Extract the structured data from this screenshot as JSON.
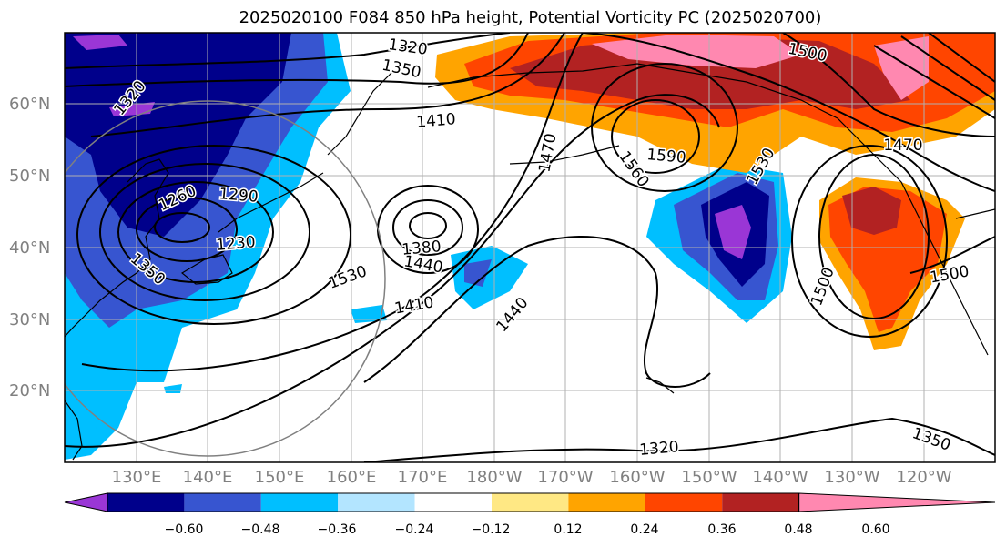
{
  "title": "2025020100 F084 850 hPa height, Potential Vorticity PC (2025020700)",
  "lat_labels": [
    "60°N",
    "50°N",
    "40°N",
    "30°N",
    "20°N"
  ],
  "lon_labels": [
    "130°E",
    "140°E",
    "150°E",
    "160°E",
    "170°E",
    "180°W",
    "170°W",
    "160°W",
    "150°W",
    "140°W",
    "130°W",
    "120°W"
  ],
  "contour_labels": [
    "1320",
    "1350",
    "1410",
    "1470",
    "1500",
    "1560",
    "1590",
    "1530",
    "1470",
    "1290",
    "1260",
    "1230",
    "1320",
    "1350",
    "1380",
    "1440",
    "1530",
    "1410",
    "1440",
    "1500",
    "1500",
    "1320",
    "1350"
  ],
  "colorbar": {
    "labels": [
      "−0.60",
      "−0.48",
      "−0.36",
      "−0.24",
      "−0.12",
      "0.12",
      "0.24",
      "0.36",
      "0.48",
      "0.60"
    ],
    "colors": [
      "#9a36d6",
      "#00008b",
      "#3755d0",
      "#00bfff",
      "#b3e5ff",
      "#ffffff",
      "#ffe884",
      "#ffa400",
      "#ff4500",
      "#b22222",
      "#ff88b0"
    ]
  }
}
